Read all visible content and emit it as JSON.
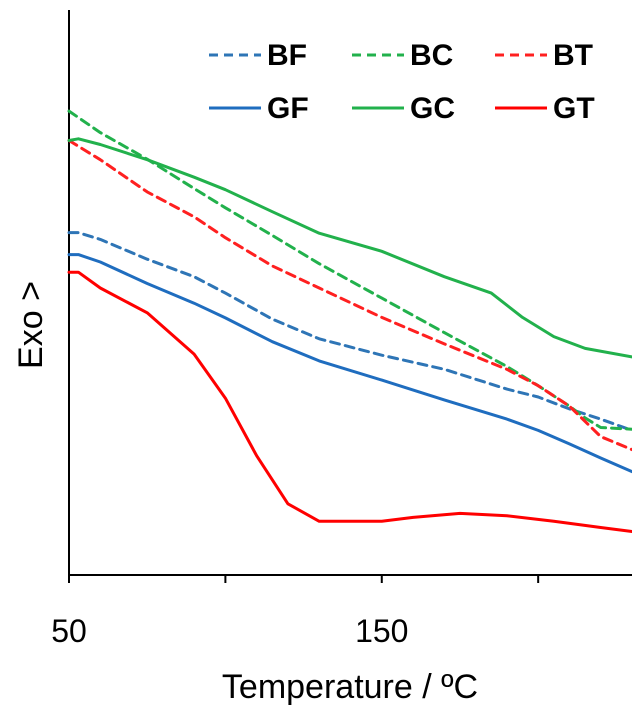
{
  "chart_data": {
    "type": "line",
    "xlabel": "Temperature / ºC",
    "ylabel": "Exo >",
    "xlim": [
      50,
      230
    ],
    "ylim": [
      0,
      100
    ],
    "x_ticks": [
      50,
      100,
      150,
      200
    ],
    "x_tick_labels": [
      "50",
      "",
      "150",
      ""
    ],
    "grid": false,
    "legend_position": "top-right",
    "series": [
      {
        "name": "BF",
        "color": "#2e75b6",
        "dash": true,
        "x": [
          50,
          53,
          60,
          75,
          90,
          100,
          115,
          130,
          150,
          170,
          190,
          200,
          210,
          220,
          230
        ],
        "y": [
          60.6,
          60.6,
          59.4,
          55.9,
          52.8,
          49.9,
          45.3,
          41.8,
          38.9,
          36.4,
          32.9,
          31.5,
          29.4,
          27.6,
          25.6
        ]
      },
      {
        "name": "BC",
        "color": "#22b14c",
        "dash": true,
        "x": [
          50,
          60,
          75,
          90,
          100,
          115,
          130,
          150,
          170,
          190,
          200,
          210,
          215,
          220,
          230
        ],
        "y": [
          82.1,
          78.3,
          73.6,
          68.4,
          65.0,
          60.1,
          55.1,
          49.0,
          42.9,
          36.9,
          33.5,
          29.9,
          27.8,
          26.1,
          25.8
        ]
      },
      {
        "name": "BT",
        "color": "#ff2020",
        "dash": true,
        "x": [
          50,
          60,
          75,
          90,
          100,
          115,
          130,
          150,
          170,
          190,
          200,
          210,
          220,
          230
        ],
        "y": [
          76.9,
          73.5,
          67.8,
          63.4,
          59.7,
          54.7,
          50.8,
          45.6,
          40.9,
          36.4,
          33.5,
          29.9,
          24.5,
          22.2
        ]
      },
      {
        "name": "GF",
        "color": "#1f6dbf",
        "dash": false,
        "x": [
          50,
          53,
          60,
          75,
          90,
          100,
          115,
          130,
          150,
          170,
          190,
          200,
          210,
          220,
          230
        ],
        "y": [
          56.7,
          56.7,
          55.4,
          51.6,
          48.1,
          45.5,
          41.3,
          37.9,
          34.5,
          31.0,
          27.6,
          25.6,
          23.2,
          20.7,
          18.3
        ]
      },
      {
        "name": "GC",
        "color": "#22b14c",
        "dash": false,
        "x": [
          50,
          53,
          60,
          75,
          90,
          100,
          115,
          130,
          150,
          170,
          185,
          195,
          205,
          215,
          230
        ],
        "y": [
          76.9,
          77.2,
          76.2,
          73.5,
          70.4,
          68.2,
          64.3,
          60.5,
          57.3,
          52.8,
          49.9,
          45.6,
          42.2,
          40.1,
          38.6
        ]
      },
      {
        "name": "GT",
        "color": "#ff0000",
        "dash": false,
        "x": [
          50,
          53,
          60,
          75,
          90,
          100,
          110,
          120,
          130,
          140,
          150,
          160,
          175,
          190,
          205,
          220,
          230
        ],
        "y": [
          53.6,
          53.6,
          50.8,
          46.4,
          39.1,
          31.3,
          21.1,
          12.6,
          9.5,
          9.5,
          9.5,
          10.2,
          10.9,
          10.5,
          9.5,
          8.4,
          7.7
        ]
      }
    ]
  }
}
